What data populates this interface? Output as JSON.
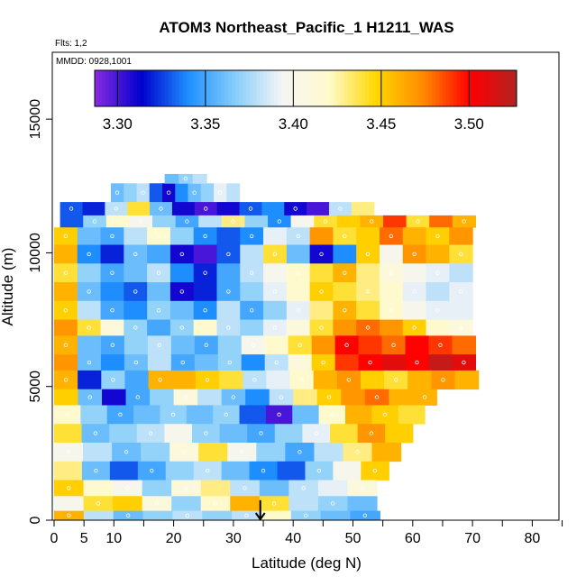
{
  "chart_data": {
    "type": "heatmap",
    "title": "ATOM3 Northeast_Pacific_1 H1211_WAS",
    "subtitle_flights": "Flts: 1,2",
    "subtitle_dates": "MMDD: 0928,1001",
    "xlabel": "Latitude (deg N)",
    "ylabel": "Altitude (m)",
    "xlim": [
      0,
      85
    ],
    "ylim": [
      0,
      17500
    ],
    "x_ticks": [
      0,
      5,
      10,
      20,
      30,
      40,
      50,
      60,
      70,
      80
    ],
    "x_minor_ticks": [
      15,
      25,
      35,
      45,
      55,
      65,
      75,
      85
    ],
    "y_ticks": [
      0,
      5000,
      10000,
      15000
    ],
    "colorbar": {
      "range": [
        3.287,
        3.527
      ],
      "ticks": [
        3.3,
        3.35,
        3.4,
        3.45,
        3.5
      ],
      "tick_labels": [
        "3.30",
        "3.35",
        "3.40",
        "3.45",
        "3.50"
      ],
      "colors": [
        "#8a2be2",
        "#0000cd",
        "#1e90ff",
        "#87cefa",
        "#f5f5f5",
        "#fffacd",
        "#ffd700",
        "#ff8c00",
        "#ff0000",
        "#b22222"
      ]
    },
    "marker": {
      "type": "arrow-down",
      "x": 34.5,
      "y_top": 750,
      "y_bottom": 0
    },
    "bands": [
      {
        "ymin": 11900,
        "ymax": 12600,
        "xmin": 9.5,
        "xmax": 31,
        "values": [
          3.36,
          3.37,
          3.38,
          3.33,
          3.31,
          3.34,
          3.36,
          3.37,
          3.39,
          3.38
        ]
      },
      {
        "ymin": 12600,
        "ymax": 12950,
        "xmin": 18.5,
        "xmax": 25.5,
        "values": [
          3.36,
          3.37,
          3.38
        ]
      },
      {
        "ymin": 11400,
        "ymax": 11900,
        "xmin": 1,
        "xmax": 53.5,
        "values": [
          3.33,
          3.32,
          3.38,
          3.44,
          3.36,
          3.31,
          3.3,
          3.31,
          3.33,
          3.34,
          3.31,
          3.3,
          3.38,
          3.43
        ]
      },
      {
        "ymin": 10950,
        "ymax": 11400,
        "xmin": 1,
        "xmax": 70.5,
        "values": [
          3.33,
          3.37,
          3.42,
          3.4,
          3.37,
          3.35,
          3.38,
          3.43,
          3.37,
          3.34,
          3.4,
          3.44,
          3.45,
          3.46,
          3.49,
          3.44,
          3.48,
          3.46
        ]
      },
      {
        "ymin": 10300,
        "ymax": 10950,
        "xmin": 0,
        "xmax": 70,
        "values": [
          3.45,
          3.36,
          3.35,
          3.38,
          3.42,
          3.37,
          3.34,
          3.33,
          3.34,
          3.39,
          3.38,
          3.47,
          3.44,
          3.45,
          3.48,
          3.46,
          3.45,
          3.47
        ]
      },
      {
        "ymin": 9600,
        "ymax": 10300,
        "xmin": 0,
        "xmax": 70,
        "values": [
          3.46,
          3.34,
          3.32,
          3.36,
          3.35,
          3.31,
          3.3,
          3.33,
          3.38,
          3.44,
          3.36,
          3.31,
          3.34,
          3.45,
          3.4,
          3.47,
          3.46,
          3.44
        ]
      },
      {
        "ymin": 8900,
        "ymax": 9600,
        "xmin": 0,
        "xmax": 70,
        "values": [
          3.44,
          3.37,
          3.35,
          3.36,
          3.38,
          3.34,
          3.32,
          3.35,
          3.38,
          3.4,
          3.42,
          3.44,
          3.46,
          3.43,
          3.41,
          3.4,
          3.39,
          3.38
        ]
      },
      {
        "ymin": 8200,
        "ymax": 8900,
        "xmin": 0,
        "xmax": 70,
        "values": [
          3.46,
          3.36,
          3.34,
          3.33,
          3.36,
          3.31,
          3.32,
          3.35,
          3.37,
          3.39,
          3.42,
          3.45,
          3.44,
          3.43,
          3.42,
          3.39,
          3.38,
          3.39
        ]
      },
      {
        "ymin": 7500,
        "ymax": 8200,
        "xmin": 0,
        "xmax": 70,
        "values": [
          3.45,
          3.38,
          3.35,
          3.34,
          3.37,
          3.36,
          3.34,
          3.38,
          3.35,
          3.37,
          3.39,
          3.43,
          3.46,
          3.44,
          3.42,
          3.4,
          3.39,
          3.39
        ]
      },
      {
        "ymin": 6900,
        "ymax": 7500,
        "xmin": 0,
        "xmax": 70,
        "values": [
          3.47,
          3.44,
          3.41,
          3.37,
          3.35,
          3.37,
          3.42,
          3.38,
          3.37,
          3.39,
          3.41,
          3.44,
          3.47,
          3.48,
          3.47,
          3.45,
          3.42,
          3.41
        ]
      },
      {
        "ymin": 6200,
        "ymax": 6900,
        "xmin": 0,
        "xmax": 70.5,
        "values": [
          3.46,
          3.36,
          3.35,
          3.37,
          3.38,
          3.36,
          3.35,
          3.37,
          3.4,
          3.42,
          3.44,
          3.47,
          3.5,
          3.49,
          3.48,
          3.5,
          3.49,
          3.48
        ]
      },
      {
        "ymin": 5600,
        "ymax": 6200,
        "xmin": 0,
        "xmax": 70.5,
        "values": [
          3.47,
          3.36,
          3.34,
          3.36,
          3.38,
          3.35,
          3.36,
          3.37,
          3.34,
          3.38,
          3.41,
          3.45,
          3.49,
          3.5,
          3.51,
          3.5,
          3.52,
          3.51
        ]
      },
      {
        "ymin": 4900,
        "ymax": 5600,
        "xmin": 0,
        "xmax": 71,
        "values": [
          3.46,
          3.32,
          3.37,
          3.35,
          3.46,
          3.46,
          3.45,
          3.44,
          3.38,
          3.39,
          3.42,
          3.46,
          3.47,
          3.45,
          3.44,
          3.46,
          3.47,
          3.46
        ]
      },
      {
        "ymin": 4300,
        "ymax": 4900,
        "xmin": 0,
        "xmax": 64,
        "values": [
          3.45,
          3.36,
          3.31,
          3.35,
          3.37,
          3.41,
          3.38,
          3.36,
          3.34,
          3.38,
          3.43,
          3.45,
          3.47,
          3.48,
          3.46,
          3.46
        ]
      },
      {
        "ymin": 3600,
        "ymax": 4300,
        "xmin": 0,
        "xmax": 62,
        "values": [
          3.42,
          3.37,
          3.35,
          3.36,
          3.37,
          3.36,
          3.37,
          3.33,
          3.3,
          3.36,
          3.42,
          3.46,
          3.45,
          3.44
        ]
      },
      {
        "ymin": 2900,
        "ymax": 3600,
        "xmin": 0,
        "xmax": 60,
        "values": [
          3.44,
          3.36,
          3.37,
          3.38,
          3.4,
          3.37,
          3.36,
          3.35,
          3.37,
          3.39,
          3.44,
          3.47,
          3.45
        ]
      },
      {
        "ymin": 2200,
        "ymax": 2900,
        "xmin": 0,
        "xmax": 58,
        "values": [
          3.4,
          3.38,
          3.36,
          3.37,
          3.41,
          3.44,
          3.4,
          3.37,
          3.35,
          3.38,
          3.43,
          3.46
        ]
      },
      {
        "ymin": 1500,
        "ymax": 2200,
        "xmin": 0,
        "xmax": 56,
        "values": [
          3.43,
          3.36,
          3.33,
          3.35,
          3.37,
          3.38,
          3.36,
          3.34,
          3.33,
          3.37,
          3.4,
          3.45
        ]
      },
      {
        "ymin": 900,
        "ymax": 1500,
        "xmin": 0,
        "xmax": 54,
        "values": [
          3.45,
          3.42,
          3.4,
          3.37,
          3.41,
          3.43,
          3.38,
          3.36,
          3.38,
          3.39,
          3.41
        ]
      },
      {
        "ymin": 350,
        "ymax": 900,
        "xmin": 0,
        "xmax": 54,
        "values": [
          3.4,
          3.44,
          3.45,
          3.41,
          3.37,
          3.42,
          3.46,
          3.44,
          3.38,
          3.37,
          3.36
        ]
      },
      {
        "ymin": 0,
        "ymax": 350,
        "xmin": 0,
        "xmax": 54.5,
        "values": [
          3.46,
          3.38,
          3.36,
          3.37,
          3.38,
          3.37,
          3.38,
          3.42,
          3.37,
          3.36,
          3.35
        ]
      }
    ]
  }
}
